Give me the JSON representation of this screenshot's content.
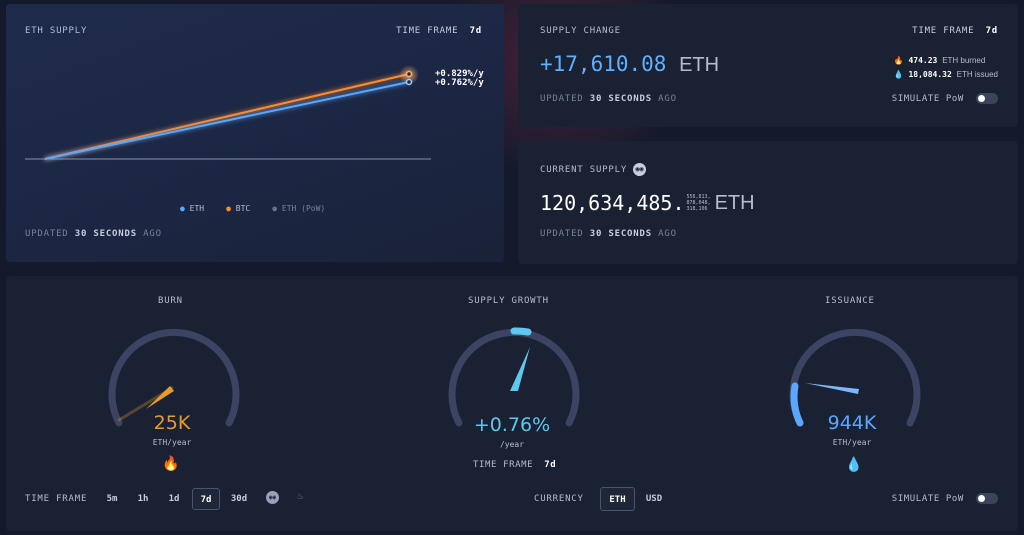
{
  "eth_supply_card": {
    "title": "ETH SUPPLY",
    "timeframe_label": "TIME FRAME",
    "timeframe_value": "7d",
    "btc_rate": "+0.829%/y",
    "eth_rate": "+0.762%/y",
    "legend": [
      "ETH",
      "BTC",
      "ETH (PoW)"
    ],
    "updated_prefix": "UPDATED",
    "updated_value": "30 SECONDS",
    "updated_suffix": "AGO",
    "colors": {
      "eth": "#5aa7ff",
      "btc": "#ff8a2a",
      "pow": "#6a7190"
    }
  },
  "supply_change_card": {
    "title": "SUPPLY CHANGE",
    "timeframe_label": "TIME FRAME",
    "timeframe_value": "7d",
    "value": "+17,610.08",
    "unit": "ETH",
    "burned_value": "474.23",
    "burned_label": "ETH burned",
    "issued_value": "18,084.32",
    "issued_label": "ETH issued",
    "updated_prefix": "UPDATED",
    "updated_value": "30 SECONDS",
    "updated_suffix": "AGO",
    "simulate_label": "SIMULATE PoW"
  },
  "current_supply_card": {
    "title": "CURRENT SUPPLY",
    "value": "120,634,485.",
    "decimals": [
      "556,813,",
      "878,048,",
      "318,106"
    ],
    "unit": "ETH",
    "updated_prefix": "UPDATED",
    "updated_value": "30 SECONDS",
    "updated_suffix": "AGO"
  },
  "gauges": {
    "burn": {
      "title": "BURN",
      "value": "25K",
      "unit": "ETH/year",
      "color": "#e89a2c"
    },
    "growth": {
      "title": "SUPPLY GROWTH",
      "value": "+0.76%",
      "unit": "/year",
      "timeframe_label": "TIME FRAME",
      "timeframe_value": "7d",
      "color": "#5fc8f0"
    },
    "issuance": {
      "title": "ISSUANCE",
      "value": "944K",
      "unit": "ETH/year",
      "color": "#5aa7ff"
    }
  },
  "bottom_controls": {
    "timeframe_label": "TIME FRAME",
    "timeframes": [
      "5m",
      "1h",
      "1d",
      "7d",
      "30d"
    ],
    "active_timeframe": "7d",
    "currency_label": "CURRENCY",
    "currency_options": [
      "ETH",
      "USD"
    ],
    "active_currency": "ETH",
    "simulate_label": "SIMULATE PoW"
  }
}
